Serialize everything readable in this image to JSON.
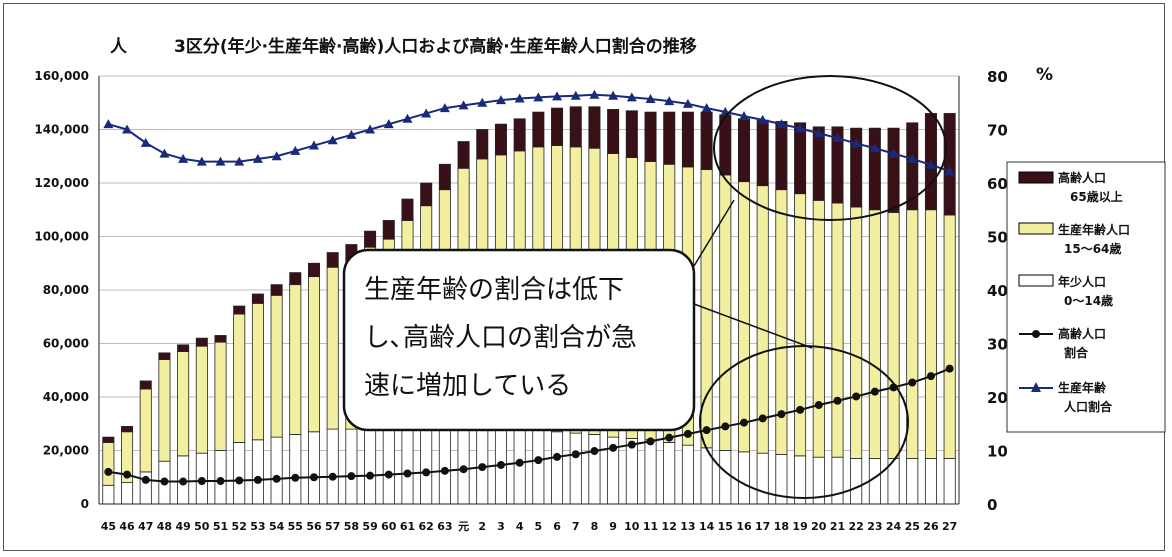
{
  "chart_data": {
    "type": "bar",
    "stacked": true,
    "title": "3区分(年少·生産年齢·高齢)人口および高齢·生産年齢人口割合の推移",
    "ylabel": "人",
    "y2label": "%",
    "ylim": [
      0,
      160000
    ],
    "y2lim": [
      0,
      80
    ],
    "yticks": [
      "0",
      "20,000",
      "40,000",
      "60,000",
      "80,000",
      "100,000",
      "120,000",
      "140,000",
      "160,000"
    ],
    "y2ticks": [
      "0",
      "10",
      "20",
      "30",
      "40",
      "50",
      "60",
      "70",
      "80"
    ],
    "grid": true,
    "legend_position": "right",
    "categories": [
      "45",
      "46",
      "47",
      "48",
      "49",
      "50",
      "51",
      "52",
      "53",
      "54",
      "55",
      "56",
      "57",
      "58",
      "59",
      "60",
      "61",
      "62",
      "63",
      "元",
      "2",
      "3",
      "4",
      "5",
      "6",
      "7",
      "8",
      "9",
      "10",
      "11",
      "12",
      "13",
      "14",
      "15",
      "16",
      "17",
      "18",
      "19",
      "20",
      "21",
      "22",
      "23",
      "24",
      "25",
      "26",
      "27"
    ],
    "series": [
      {
        "name": "年少人口",
        "name_line2": "0～14歳",
        "kind": "bar",
        "color": "#ffffff",
        "values": [
          7000,
          8000,
          12000,
          16000,
          18000,
          19000,
          20000,
          23000,
          24000,
          25000,
          26000,
          27000,
          28000,
          28000,
          29000,
          29000,
          29000,
          29500,
          29500,
          29500,
          29000,
          28500,
          28000,
          27500,
          27000,
          26500,
          26000,
          25000,
          24500,
          24000,
          23000,
          22000,
          21000,
          20000,
          19500,
          19000,
          18500,
          18000,
          17500,
          17500,
          17000,
          17000,
          17000,
          17000,
          17000,
          17000
        ]
      },
      {
        "name": "生産年齢人口",
        "name_line2": "15～64歳",
        "kind": "bar",
        "color": "#f2f0a0",
        "values": [
          16000,
          19000,
          31000,
          38000,
          39000,
          40000,
          40500,
          48000,
          51000,
          53000,
          56000,
          58000,
          60500,
          63000,
          67000,
          70000,
          77000,
          82000,
          88000,
          96000,
          100000,
          102000,
          104000,
          106000,
          107000,
          107000,
          107000,
          106000,
          105000,
          104000,
          104000,
          104000,
          104000,
          103000,
          101000,
          100000,
          99000,
          98000,
          96000,
          95000,
          94000,
          93000,
          92000,
          93000,
          93000,
          91000
        ]
      },
      {
        "name": "高齢人口",
        "name_line2": "65歳以上",
        "kind": "bar",
        "color": "#3a1018",
        "values": [
          2000,
          2000,
          3000,
          2500,
          2500,
          3000,
          2500,
          3000,
          3500,
          4000,
          4500,
          5000,
          5500,
          6000,
          6000,
          7000,
          8000,
          8500,
          9500,
          10000,
          11000,
          11500,
          12000,
          13000,
          14000,
          15000,
          15500,
          16500,
          17500,
          18500,
          19500,
          20500,
          21500,
          22500,
          23500,
          24500,
          25500,
          26500,
          27500,
          28500,
          29500,
          30500,
          31500,
          32500,
          36000,
          38000
        ]
      },
      {
        "name": "高齢人口",
        "name_line2": "割合",
        "kind": "line",
        "axis": "right",
        "marker": "circle",
        "color": "#111111",
        "values": [
          6.0,
          5.5,
          4.5,
          4.2,
          4.2,
          4.3,
          4.3,
          4.4,
          4.5,
          4.7,
          4.9,
          5.0,
          5.1,
          5.2,
          5.3,
          5.5,
          5.7,
          5.9,
          6.2,
          6.5,
          6.9,
          7.3,
          7.7,
          8.2,
          8.8,
          9.3,
          9.9,
          10.5,
          11.1,
          11.7,
          12.4,
          13.1,
          13.8,
          14.5,
          15.2,
          16.0,
          16.8,
          17.6,
          18.5,
          19.3,
          20.1,
          21.0,
          21.8,
          22.7,
          23.9,
          25.3
        ]
      },
      {
        "name": "生産年齢",
        "name_line2": "人口割合",
        "kind": "line",
        "axis": "right",
        "marker": "triangle",
        "color": "#1a2a7a",
        "values": [
          71.0,
          70.0,
          67.5,
          65.5,
          64.5,
          64.0,
          64.0,
          64.0,
          64.5,
          65.0,
          66.0,
          67.0,
          68.0,
          69.0,
          70.0,
          71.0,
          72.0,
          73.0,
          74.0,
          74.5,
          75.0,
          75.5,
          75.8,
          76.0,
          76.2,
          76.3,
          76.5,
          76.3,
          76.0,
          75.7,
          75.3,
          74.8,
          74.0,
          73.3,
          72.5,
          71.8,
          71.0,
          70.2,
          69.3,
          68.4,
          67.4,
          66.5,
          65.5,
          64.5,
          63.4,
          62.2
        ]
      }
    ],
    "annotation": [
      "生産年齢の割合は低下",
      "し､高齢人口の割合が急",
      "速に増加している"
    ]
  }
}
